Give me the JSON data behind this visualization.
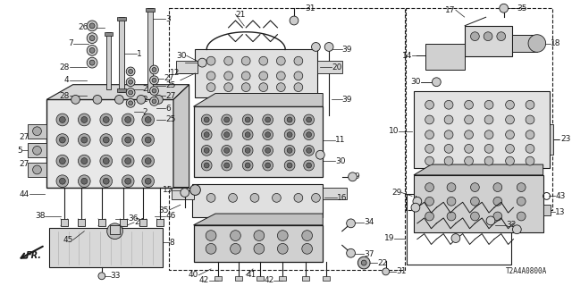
{
  "bg_color": "#ffffff",
  "line_color": "#1a1a1a",
  "diagram_code": "T2A4A0800A",
  "label_fontsize": 6.5,
  "figsize": [
    6.4,
    3.2
  ],
  "dpi": 100
}
